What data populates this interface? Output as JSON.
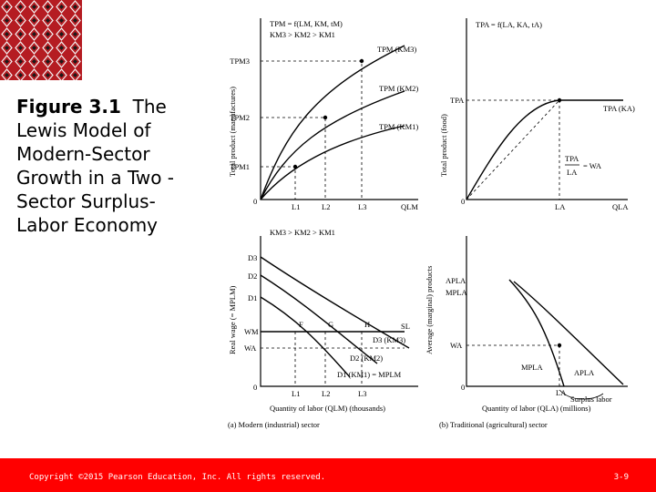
{
  "title": {
    "figure_label": "Figure 3.1",
    "text": "The Lewis Model of Modern-Sector Growth in a Two -Sector Surplus-Labor Economy"
  },
  "footer": {
    "copyright": "Copyright ©2015 Pearson Education, Inc. All rights reserved.",
    "slide_number": "3-9"
  },
  "colors": {
    "banner": "#b51c22",
    "footer": "#ff0000",
    "text": "#000000"
  },
  "diagram": {
    "tl": {
      "eq1": "TPM = f(LM, KM, tM)",
      "eq2": "KM3 > KM2 > KM1",
      "ylabel": "Total product (manufactures)",
      "xlabel": "QLM",
      "tp3": "TPM3",
      "tp2": "TPM2",
      "tp1": "TPM1",
      "c3": "TPM (KM3)",
      "c2": "TPM (KM2)",
      "c1": "TPM (KM1)",
      "l1": "L1",
      "l2": "L2",
      "l3": "L3",
      "origin": "0"
    },
    "tr": {
      "eq": "TPA = f(LA, KA, tA)",
      "ylabel": "Total product (food)",
      "tpa": "TPA",
      "curve": "TPA (KA)",
      "ratio_num": "TPA",
      "ratio_den": "LA",
      "ratio_eq": "= WA",
      "la": "LA",
      "xlabel": "QLA",
      "origin": "0"
    },
    "bl": {
      "eq": "KM3 > KM2 > KM1",
      "ylabel": "Real wage (= MPLM)",
      "d3": "D3",
      "d2": "D2",
      "d1": "D1",
      "wm": "WM",
      "wa": "WA",
      "f": "F",
      "g": "G",
      "h": "H",
      "sl": "SL",
      "c3": "D3 (KM3)",
      "c2": "D2 (KM2)",
      "c1": "D1 (KM1) = MPLM",
      "l1": "L1",
      "l2": "L2",
      "l3": "L3",
      "origin": "0",
      "xlabel": "Quantity of labor (QLM) (thousands)",
      "caption": "(a) Modern (industrial) sector"
    },
    "br": {
      "ylabel": "Average (marginal) products",
      "apla": "APLA",
      "mpla": "MPLA",
      "wa": "WA",
      "c_mp": "MPLA",
      "c_ap": "APLA",
      "la": "LA",
      "surplus": "Surplus labor",
      "origin": "0",
      "xlabel": "Quantity of labor (QLA) (millions)",
      "caption": "(b) Traditional (agricultural) sector"
    }
  }
}
